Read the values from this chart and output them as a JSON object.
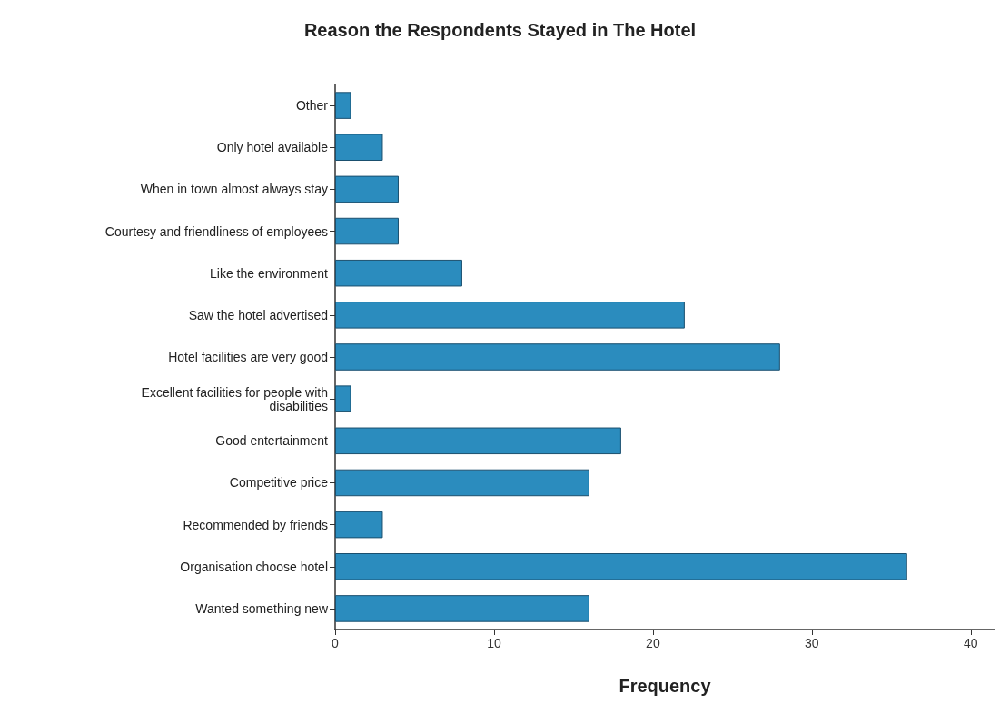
{
  "chart_data": {
    "type": "bar",
    "orientation": "horizontal",
    "title": "Reason the Respondents Stayed in The Hotel",
    "xlabel": "Frequency",
    "categories": [
      "Other",
      "Only hotel available",
      "When in town almost always stay",
      "Courtesy and friendliness of employees",
      "Like the environment",
      "Saw the hotel advertised",
      "Hotel facilities are very good",
      "Excellent facilities for people with\ndisabilities",
      "Good entertainment",
      "Competitive price",
      "Recommended by friends",
      "Organisation choose hotel",
      "Wanted something new"
    ],
    "values": [
      1,
      3,
      4,
      4,
      8,
      22,
      28,
      1,
      18,
      16,
      3,
      36,
      16
    ],
    "color": "#2b8cbe",
    "xlim": [
      0,
      41.5
    ],
    "xticks": [
      0,
      10,
      20,
      30,
      40
    ]
  }
}
